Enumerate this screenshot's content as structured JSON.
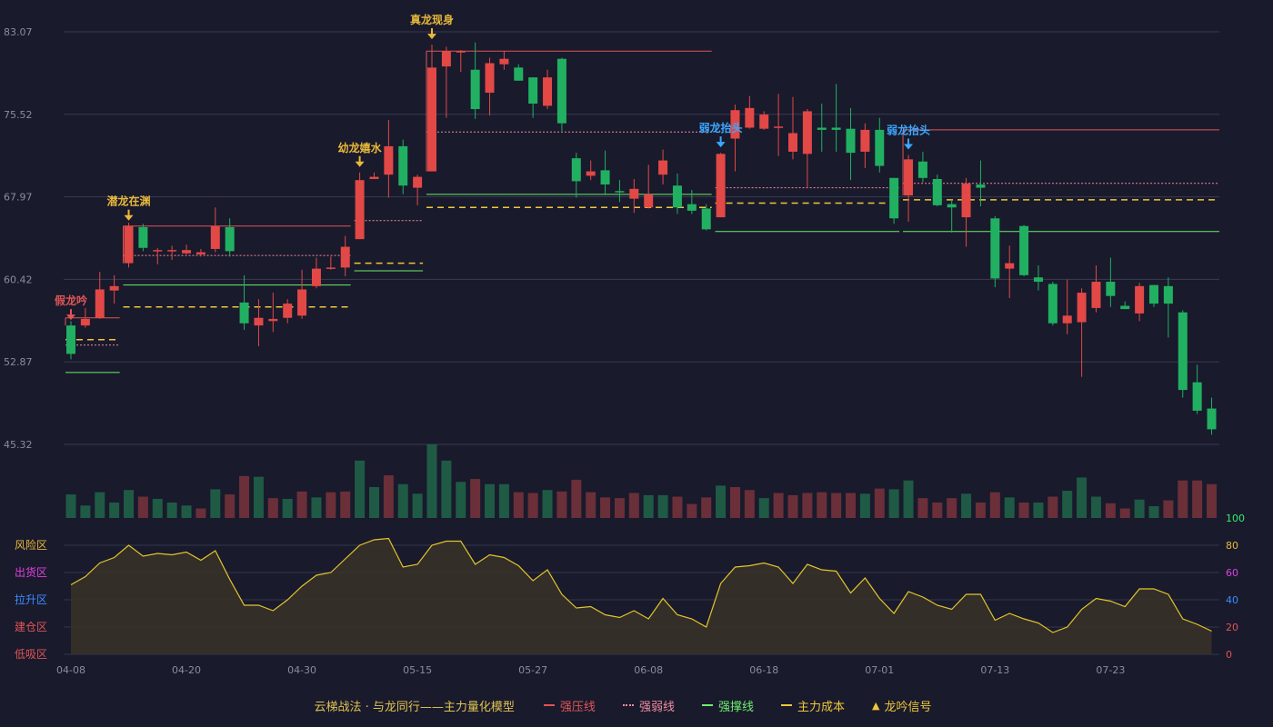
{
  "chart_data": {
    "type": "candlestick",
    "title": "云梯战法 · 与龙同行——主力量化模型",
    "price_axis": {
      "ticks": [
        "83.07",
        "75.52",
        "67.97",
        "60.42",
        "52.87",
        "45.32"
      ],
      "min": 45.32,
      "max": 83.07
    },
    "x_ticks": [
      "04-08",
      "04-20",
      "04-30",
      "05-15",
      "05-27",
      "06-08",
      "06-18",
      "07-01",
      "07-13",
      "07-23"
    ],
    "zone_labels": [
      "风险区",
      "出货区",
      "拉升区",
      "建仓区",
      "低吸区"
    ],
    "osc_axis": {
      "ticks": [
        "100",
        "80",
        "60",
        "40",
        "20",
        "0"
      ],
      "min": 0,
      "max": 100
    },
    "candles": [
      [
        56.2,
        53.6,
        56.6,
        53.1
      ],
      [
        56.2,
        56.8,
        57.8,
        56.0
      ],
      [
        56.9,
        59.5,
        61.1,
        56.8
      ],
      [
        59.4,
        59.8,
        60.8,
        58.2
      ],
      [
        61.9,
        65.3,
        65.6,
        61.5
      ],
      [
        65.2,
        63.3,
        65.5,
        63.0
      ],
      [
        63.0,
        63.1,
        63.3,
        61.8
      ],
      [
        63.0,
        63.1,
        63.5,
        62.2
      ],
      [
        62.8,
        63.1,
        63.6,
        62.7
      ],
      [
        62.7,
        62.9,
        63.2,
        62.5
      ],
      [
        63.2,
        65.3,
        67.0,
        62.9
      ],
      [
        65.2,
        63.0,
        66.0,
        62.5
      ],
      [
        58.3,
        56.4,
        60.8,
        55.8
      ],
      [
        56.2,
        56.9,
        58.6,
        54.3
      ],
      [
        56.6,
        56.8,
        59.2,
        55.6
      ],
      [
        56.9,
        58.2,
        58.6,
        56.4
      ],
      [
        57.1,
        59.5,
        61.3,
        56.8
      ],
      [
        59.8,
        61.4,
        62.4,
        59.6
      ],
      [
        61.4,
        61.5,
        62.5,
        61.3
      ],
      [
        61.5,
        63.4,
        64.4,
        60.7
      ],
      [
        64.1,
        69.5,
        70.2,
        64.1
      ],
      [
        69.6,
        69.8,
        70.2,
        69.6
      ],
      [
        70.0,
        72.6,
        75.0,
        67.9
      ],
      [
        72.6,
        69.0,
        73.2,
        68.2
      ],
      [
        68.8,
        69.8,
        70.0,
        67.2
      ],
      [
        70.3,
        79.8,
        81.9,
        70.3
      ],
      [
        79.9,
        81.3,
        81.7,
        75.2
      ],
      [
        81.3,
        81.3,
        81.4,
        79.4
      ],
      [
        79.6,
        76.0,
        82.1,
        75.1
      ],
      [
        77.5,
        80.2,
        80.7,
        75.4
      ],
      [
        80.1,
        80.6,
        81.3,
        79.6
      ],
      [
        79.8,
        78.6,
        80.1,
        78.6
      ],
      [
        78.9,
        76.5,
        78.9,
        75.2
      ],
      [
        76.3,
        78.9,
        79.6,
        76.0
      ],
      [
        80.6,
        74.7,
        80.7,
        74.0
      ],
      [
        71.5,
        69.4,
        72.0,
        67.9
      ],
      [
        69.9,
        70.3,
        71.3,
        69.5
      ],
      [
        70.4,
        69.1,
        72.2,
        68.1
      ],
      [
        68.5,
        68.4,
        69.5,
        67.5
      ],
      [
        67.8,
        68.7,
        69.6,
        66.5
      ],
      [
        67.0,
        68.2,
        70.9,
        66.9
      ],
      [
        70.0,
        71.3,
        72.3,
        69.1
      ],
      [
        69.0,
        67.0,
        70.1,
        66.4
      ],
      [
        67.3,
        66.7,
        68.6,
        66.4
      ],
      [
        66.9,
        65.0,
        67.3,
        64.9
      ],
      [
        66.1,
        71.9,
        72.0,
        66.1
      ],
      [
        73.3,
        75.9,
        76.4,
        70.3
      ],
      [
        74.3,
        76.1,
        77.2,
        74.2
      ],
      [
        74.2,
        75.5,
        75.8,
        74.1
      ],
      [
        74.3,
        74.4,
        77.4,
        71.7
      ],
      [
        72.1,
        73.8,
        77.1,
        71.4
      ],
      [
        71.9,
        75.8,
        76.0,
        68.8
      ],
      [
        74.3,
        74.1,
        76.5,
        72.1
      ],
      [
        74.3,
        74.1,
        78.3,
        72.1
      ],
      [
        74.2,
        72.0,
        76.1,
        69.5
      ],
      [
        72.1,
        74.1,
        74.7,
        70.6
      ],
      [
        74.1,
        70.8,
        75.2,
        70.2
      ],
      [
        69.7,
        66.0,
        69.7,
        65.5
      ],
      [
        68.1,
        71.4,
        71.8,
        65.7
      ],
      [
        71.2,
        69.7,
        72.1,
        69.3
      ],
      [
        69.6,
        67.2,
        70.0,
        67.1
      ],
      [
        67.3,
        67.0,
        67.7,
        64.7
      ],
      [
        66.1,
        69.2,
        69.7,
        63.4
      ],
      [
        69.1,
        68.8,
        71.3,
        67.1
      ],
      [
        66.0,
        60.5,
        66.2,
        59.7
      ],
      [
        61.4,
        61.9,
        63.5,
        58.7
      ],
      [
        65.3,
        60.8,
        65.4,
        60.7
      ],
      [
        60.6,
        60.2,
        61.7,
        59.4
      ],
      [
        60.0,
        56.4,
        60.2,
        56.2
      ],
      [
        56.4,
        57.1,
        60.4,
        55.4
      ],
      [
        56.5,
        59.2,
        59.6,
        51.5
      ],
      [
        57.8,
        60.2,
        61.7,
        57.4
      ],
      [
        60.2,
        58.9,
        62.4,
        57.9
      ],
      [
        58.0,
        57.7,
        58.4,
        57.7
      ],
      [
        57.3,
        59.8,
        60.1,
        56.6
      ],
      [
        59.9,
        58.2,
        59.9,
        57.9
      ],
      [
        59.8,
        58.2,
        60.6,
        55.1
      ],
      [
        57.4,
        50.3,
        57.6,
        49.6
      ],
      [
        51.0,
        48.4,
        52.6,
        48.1
      ],
      [
        48.6,
        46.7,
        49.6,
        46.2
      ]
    ],
    "volumes": [
      [
        0.32,
        0
      ],
      [
        0.17,
        0
      ],
      [
        0.35,
        0
      ],
      [
        0.21,
        0
      ],
      [
        0.38,
        0
      ],
      [
        0.29,
        1
      ],
      [
        0.26,
        0
      ],
      [
        0.21,
        0
      ],
      [
        0.17,
        0
      ],
      [
        0.13,
        1
      ],
      [
        0.39,
        0
      ],
      [
        0.32,
        1
      ],
      [
        0.57,
        1
      ],
      [
        0.56,
        0
      ],
      [
        0.27,
        1
      ],
      [
        0.26,
        0
      ],
      [
        0.36,
        1
      ],
      [
        0.28,
        0
      ],
      [
        0.35,
        1
      ],
      [
        0.36,
        1
      ],
      [
        0.78,
        0
      ],
      [
        0.42,
        0
      ],
      [
        0.58,
        1
      ],
      [
        0.46,
        0
      ],
      [
        0.33,
        0
      ],
      [
        1.0,
        0
      ],
      [
        0.78,
        0
      ],
      [
        0.49,
        0
      ],
      [
        0.53,
        1
      ],
      [
        0.46,
        0
      ],
      [
        0.46,
        0
      ],
      [
        0.35,
        1
      ],
      [
        0.34,
        1
      ],
      [
        0.38,
        0
      ],
      [
        0.36,
        1
      ],
      [
        0.52,
        1
      ],
      [
        0.35,
        1
      ],
      [
        0.28,
        1
      ],
      [
        0.27,
        1
      ],
      [
        0.34,
        1
      ],
      [
        0.31,
        0
      ],
      [
        0.31,
        0
      ],
      [
        0.29,
        1
      ],
      [
        0.19,
        1
      ],
      [
        0.28,
        1
      ],
      [
        0.44,
        0
      ],
      [
        0.42,
        1
      ],
      [
        0.38,
        1
      ],
      [
        0.27,
        0
      ],
      [
        0.34,
        1
      ],
      [
        0.31,
        1
      ],
      [
        0.34,
        1
      ],
      [
        0.35,
        1
      ],
      [
        0.34,
        1
      ],
      [
        0.34,
        1
      ],
      [
        0.33,
        0
      ],
      [
        0.4,
        1
      ],
      [
        0.39,
        0
      ],
      [
        0.51,
        0
      ],
      [
        0.27,
        1
      ],
      [
        0.21,
        1
      ],
      [
        0.27,
        1
      ],
      [
        0.33,
        0
      ],
      [
        0.21,
        1
      ],
      [
        0.35,
        1
      ],
      [
        0.28,
        0
      ],
      [
        0.21,
        1
      ],
      [
        0.21,
        0
      ],
      [
        0.29,
        1
      ],
      [
        0.37,
        0
      ],
      [
        0.55,
        0
      ],
      [
        0.29,
        0
      ],
      [
        0.2,
        1
      ],
      [
        0.13,
        1
      ],
      [
        0.25,
        0
      ],
      [
        0.16,
        0
      ],
      [
        0.24,
        1
      ],
      [
        0.51,
        1
      ],
      [
        0.51,
        1
      ],
      [
        0.46,
        1
      ]
    ],
    "osc": [
      51,
      57,
      67,
      71,
      80,
      72,
      74,
      73,
      75,
      69,
      76,
      55,
      36,
      36,
      32,
      40,
      50,
      58,
      60,
      70,
      80,
      84,
      85,
      64,
      66,
      80,
      83,
      83,
      66,
      73,
      71,
      65,
      54,
      62,
      44,
      34,
      35,
      29,
      27,
      32,
      26,
      41,
      29,
      26,
      20,
      52,
      64,
      65,
      67,
      64,
      52,
      66,
      62,
      61,
      45,
      56,
      41,
      30,
      46,
      42,
      36,
      33,
      44,
      44,
      25,
      30,
      26,
      23,
      16,
      20,
      33,
      41,
      39,
      35,
      48,
      48,
      44,
      26,
      22,
      17
    ],
    "signals": [
      {
        "label": "假龙吟",
        "index": 0,
        "price": 56.2,
        "color": "#e05556"
      },
      {
        "label": "潜龙在渊",
        "index": 4,
        "price": 65.3,
        "color": "#e8b93a"
      },
      {
        "label": "幼龙嬉水",
        "index": 20,
        "price": 70.2,
        "color": "#e8b93a"
      },
      {
        "label": "真龙现身",
        "index": 25,
        "price": 81.9,
        "color": "#e8b93a"
      },
      {
        "label": "弱龙抬头",
        "index": 45,
        "price": 72.0,
        "color": "#3ba8ff"
      },
      {
        "label": "弱龙抬头",
        "index": 58,
        "price": 71.8,
        "color": "#3ba8ff"
      }
    ],
    "levels": [
      {
        "from": 0,
        "to": 3,
        "strong": 56.9,
        "weak": 54.4,
        "support": 51.9,
        "cost": 54.9
      },
      {
        "from": 4,
        "to": 19,
        "strong": 65.3,
        "weak": 62.6,
        "support": 59.9,
        "cost": 57.9
      },
      {
        "from": 20,
        "to": 24,
        "strong": null,
        "weak": 65.8,
        "support": 61.2,
        "cost": 61.9
      },
      {
        "from": 25,
        "to": 44,
        "strong": 81.3,
        "weak": 73.9,
        "support": 68.2,
        "cost": 67.0
      },
      {
        "from": 45,
        "to": 57,
        "strong": null,
        "weak": 68.8,
        "support": 64.8,
        "cost": 67.4
      },
      {
        "from": 58,
        "to": 79,
        "strong": 74.1,
        "weak": 69.2,
        "support": 64.8,
        "cost": 67.7
      }
    ]
  },
  "legend": {
    "title": "云梯战法 · 与龙同行——主力量化模型",
    "items": [
      {
        "label": "强压线",
        "color": "#e05556",
        "style": "solid"
      },
      {
        "label": "强弱线",
        "color": "#f08ca0",
        "style": "dot"
      },
      {
        "label": "强撑线",
        "color": "#6dee6d",
        "style": "solid"
      },
      {
        "label": "主力成本",
        "color": "#f0c73a",
        "style": "dash"
      },
      {
        "label": "龙吟信号",
        "color": "#f0c73a",
        "style": "tri"
      }
    ]
  }
}
